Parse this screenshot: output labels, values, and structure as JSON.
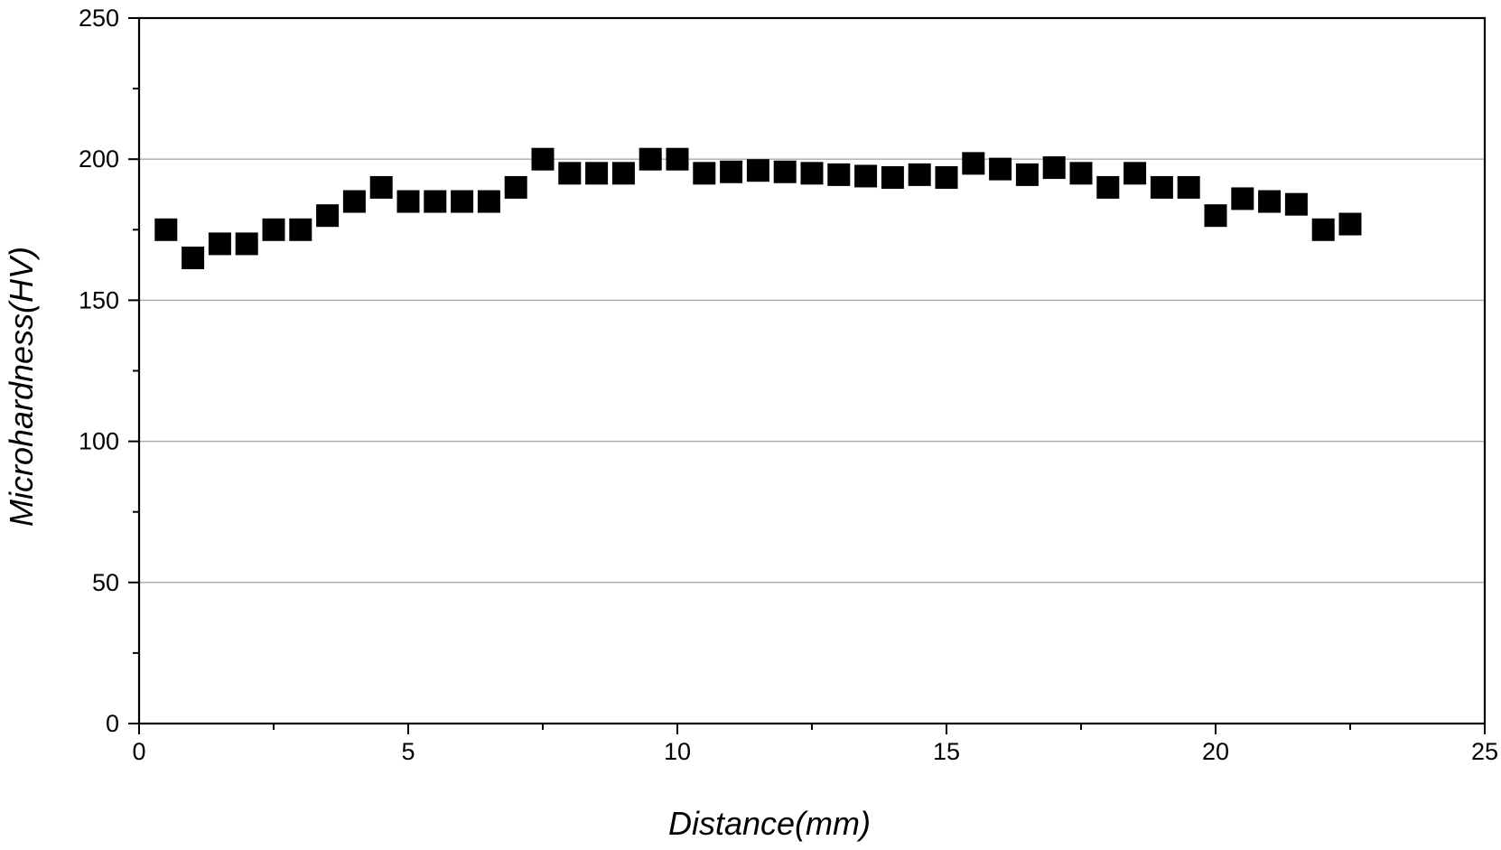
{
  "chart_data": {
    "type": "scatter",
    "title": "",
    "xlabel": "Distance(mm)",
    "ylabel": "Microhardness(HV)",
    "xlim": [
      0,
      25
    ],
    "ylim": [
      0,
      250
    ],
    "x_ticks": [
      "0",
      "5",
      "10",
      "15",
      "20",
      "25"
    ],
    "y_ticks": [
      "0",
      "50",
      "100",
      "150",
      "200",
      "250"
    ],
    "grid": "horizontal",
    "marker": "square",
    "marker_color": "#000000",
    "series": [
      {
        "x": [
          0.5,
          1.0,
          1.5,
          2.0,
          2.5,
          3.0,
          3.5,
          4.0,
          4.5,
          5.0,
          5.5,
          6.0,
          6.5,
          7.0,
          7.5,
          8.0,
          8.5,
          9.0,
          9.5,
          10.0,
          10.5,
          11.0,
          11.5,
          12.0,
          12.5,
          13.0,
          13.5,
          14.0,
          14.5,
          15.0,
          15.5,
          16.0,
          16.5,
          17.0,
          17.5,
          18.0,
          18.5,
          19.0,
          19.5,
          20.0,
          20.5,
          21.0,
          21.5,
          22.0,
          22.5
        ],
        "y": [
          175,
          165,
          170,
          170,
          175,
          175,
          180,
          185,
          190,
          185,
          185,
          185,
          185,
          190,
          200,
          195,
          195,
          195,
          200,
          200,
          195,
          195.5,
          196,
          195.5,
          195,
          194.5,
          194,
          193.5,
          194.5,
          193.5,
          198.5,
          196.5,
          194.5,
          197,
          195,
          190,
          195,
          190,
          190,
          180,
          186,
          185,
          184,
          175,
          177
        ]
      }
    ]
  }
}
